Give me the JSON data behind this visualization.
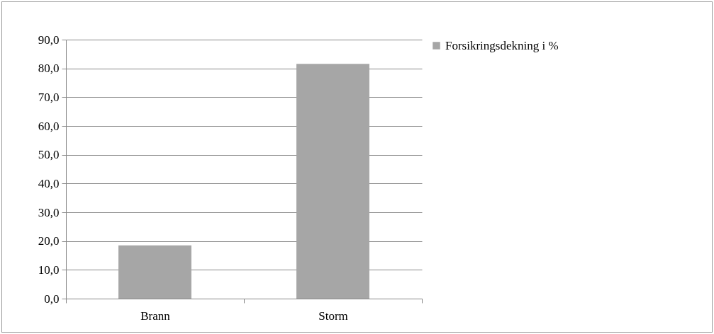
{
  "chart_data": {
    "type": "bar",
    "categories": [
      "Brann",
      "Storm"
    ],
    "series": [
      {
        "name": "Forsikringsdekning i %",
        "color": "#a6a6a6",
        "values": [
          18.5,
          81.6
        ]
      }
    ],
    "ylim": [
      0,
      90
    ],
    "yticks": [
      {
        "value": 0,
        "label": "0,0"
      },
      {
        "value": 10,
        "label": "10,0"
      },
      {
        "value": 20,
        "label": "20,0"
      },
      {
        "value": 30,
        "label": "30,0"
      },
      {
        "value": 40,
        "label": "40,0"
      },
      {
        "value": 50,
        "label": "50,0"
      },
      {
        "value": 60,
        "label": "60,0"
      },
      {
        "value": 70,
        "label": "70,0"
      },
      {
        "value": 80,
        "label": "80,0"
      },
      {
        "value": 90,
        "label": "90,0"
      }
    ],
    "grid": "y",
    "legend": "right"
  }
}
